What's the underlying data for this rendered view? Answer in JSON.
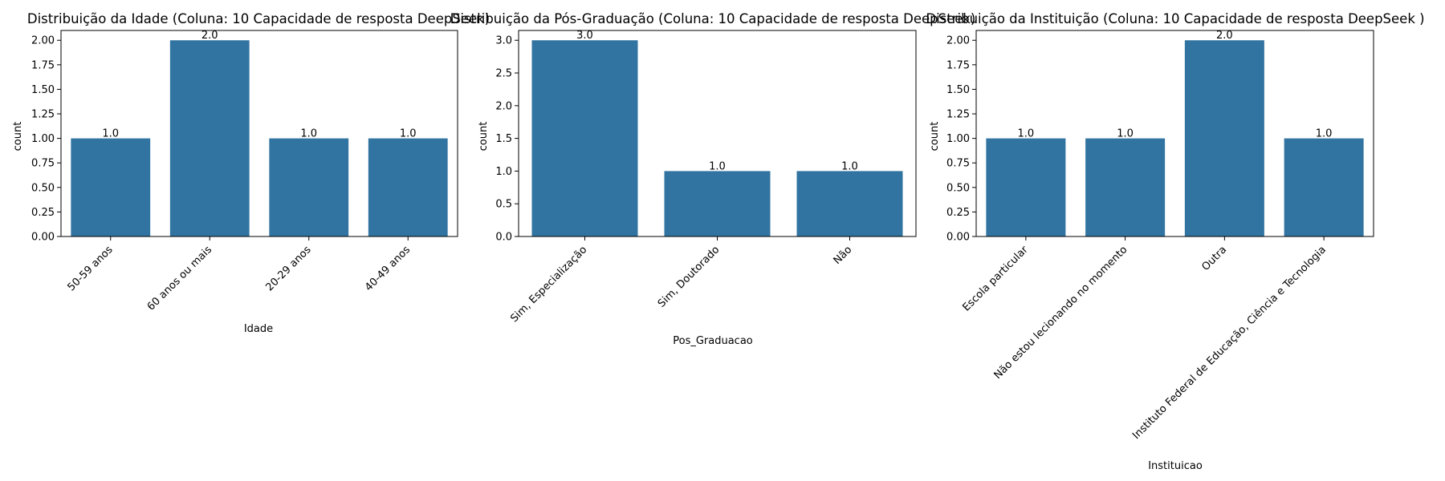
{
  "chart_data": [
    {
      "type": "bar",
      "title": "Distribuição da Idade (Coluna: 10 Capacidade de resposta DeepSeek)",
      "xlabel": "Idade",
      "ylabel": "count",
      "categories": [
        "50-59 anos",
        "60 anos ou mais",
        "20-29 anos",
        "40-49 anos"
      ],
      "values": [
        1,
        2,
        1,
        1
      ],
      "data_labels": [
        "1.0",
        "2.0",
        "1.0",
        "1.0"
      ],
      "ylim": [
        0,
        2.1
      ],
      "yticks": [
        0,
        0.25,
        0.5,
        0.75,
        1.0,
        1.25,
        1.5,
        1.75,
        2.0
      ],
      "ytick_labels": [
        "0.00",
        "0.25",
        "0.50",
        "0.75",
        "1.00",
        "1.25",
        "1.50",
        "1.75",
        "2.00"
      ],
      "bar_color": "#3274a1",
      "grid": false
    },
    {
      "type": "bar",
      "title": "Distribuição da Pós-Graduação (Coluna: 10 Capacidade de resposta DeepSeek)",
      "xlabel": "Pos_Graduacao",
      "ylabel": "count",
      "categories": [
        "Sim, Especialização",
        "Sim, Doutorado",
        "Não"
      ],
      "values": [
        3,
        1,
        1
      ],
      "data_labels": [
        "3.0",
        "1.0",
        "1.0"
      ],
      "ylim": [
        0,
        3.15
      ],
      "yticks": [
        0,
        0.5,
        1.0,
        1.5,
        2.0,
        2.5,
        3.0
      ],
      "ytick_labels": [
        "0.0",
        "0.5",
        "1.0",
        "1.5",
        "2.0",
        "2.5",
        "3.0"
      ],
      "bar_color": "#3274a1",
      "grid": false
    },
    {
      "type": "bar",
      "title": "Distribuição da Instituição (Coluna: 10 Capacidade de resposta DeepSeek )",
      "xlabel": "Instituicao",
      "ylabel": "count",
      "categories": [
        "Escola particular",
        "Não estou lecionando no momento",
        "Outra",
        "Instituto Federal de Educação, Ciência e Tecnologia"
      ],
      "values": [
        1,
        1,
        2,
        1
      ],
      "data_labels": [
        "1.0",
        "1.0",
        "2.0",
        "1.0"
      ],
      "ylim": [
        0,
        2.1
      ],
      "yticks": [
        0,
        0.25,
        0.5,
        0.75,
        1.0,
        1.25,
        1.5,
        1.75,
        2.0
      ],
      "ytick_labels": [
        "0.00",
        "0.25",
        "0.50",
        "0.75",
        "1.00",
        "1.25",
        "1.50",
        "1.75",
        "2.00"
      ],
      "bar_color": "#3274a1",
      "grid": false
    }
  ]
}
